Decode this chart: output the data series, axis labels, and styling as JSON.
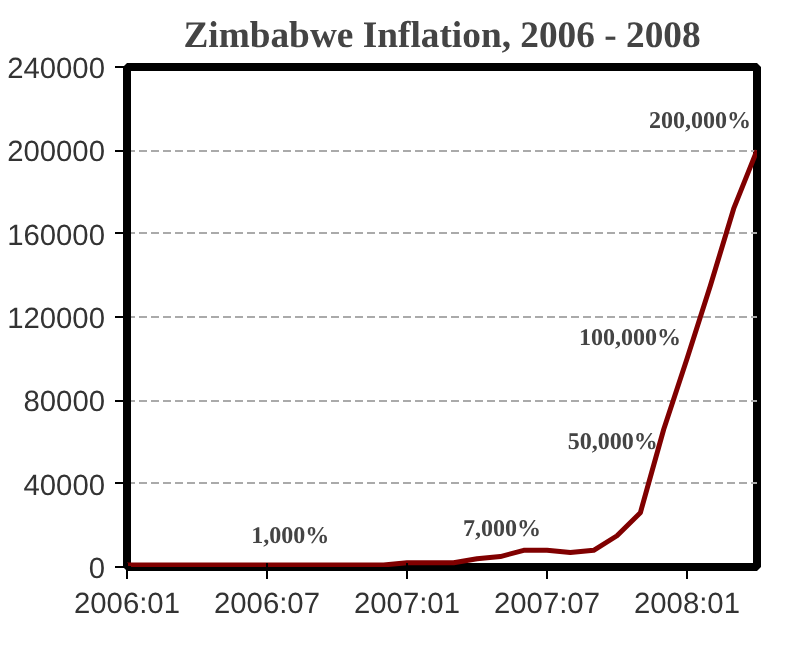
{
  "chart_data": {
    "type": "line",
    "title": "Zimbabwe Inflation, 2006 - 2008",
    "x": [
      "2006-01",
      "2006-02",
      "2006-03",
      "2006-04",
      "2006-05",
      "2006-06",
      "2006-07",
      "2006-08",
      "2006-09",
      "2006-10",
      "2006-11",
      "2006-12",
      "2007-01",
      "2007-02",
      "2007-03",
      "2007-04",
      "2007-05",
      "2007-06",
      "2007-07",
      "2007-08",
      "2007-09",
      "2007-10",
      "2007-11",
      "2007-12",
      "2008-01",
      "2008-02",
      "2008-03",
      "2008-04"
    ],
    "series": [
      {
        "color": "#800000",
        "values": [
          1000,
          1000,
          1000,
          1000,
          1000,
          1000,
          1000,
          1000,
          1000,
          1000,
          1000,
          1000,
          2000,
          2000,
          2000,
          4000,
          5000,
          8000,
          8000,
          7000,
          8000,
          15000,
          26000,
          66000,
          100000,
          135000,
          172000,
          200000
        ]
      }
    ],
    "xlim": [
      "2006-01",
      "2008-04"
    ],
    "xticks": [
      {
        "value": "2006-01",
        "label": "2006:01"
      },
      {
        "value": "2006-07",
        "label": "2006:07"
      },
      {
        "value": "2007-01",
        "label": "2007:01"
      },
      {
        "value": "2007-07",
        "label": "2007:07"
      },
      {
        "value": "2008-01",
        "label": "2008:01"
      }
    ],
    "ylim": [
      0,
      240000
    ],
    "yticks": [
      0,
      40000,
      80000,
      120000,
      160000,
      200000,
      240000
    ],
    "grid": "y",
    "marker": "none",
    "line_style": "solid",
    "annotations": [
      {
        "text": "1,000%",
        "x": "2006-08",
        "y": 1000
      },
      {
        "text": "7,000%",
        "x": "2007-07",
        "y": 8000
      },
      {
        "text": "50,000%",
        "x": "2007-12",
        "y": 50000
      },
      {
        "text": "100,000%",
        "x": "2008-01",
        "y": 100000
      },
      {
        "text": "200,000%",
        "x": "2008-04",
        "y": 200000
      }
    ]
  }
}
